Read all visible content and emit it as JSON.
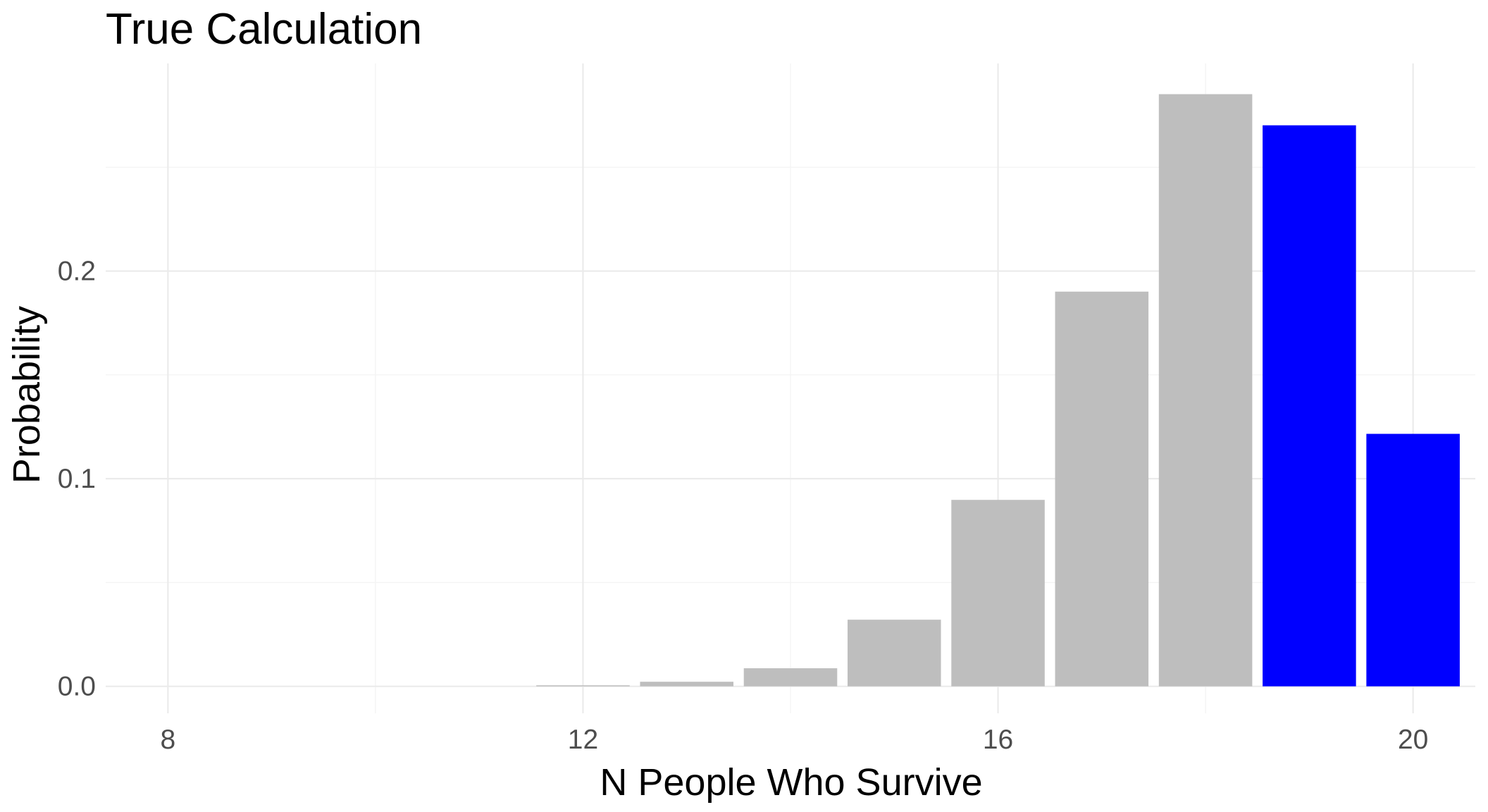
{
  "chart_data": {
    "type": "bar",
    "title": "True Calculation",
    "xlabel": "N People Who Survive",
    "ylabel": "Probability",
    "x": [
      12,
      13,
      14,
      15,
      16,
      17,
      18,
      19,
      20
    ],
    "values": [
      0.0005,
      0.0022,
      0.0087,
      0.0321,
      0.0898,
      0.1901,
      0.2852,
      0.2702,
      0.1216
    ],
    "highlight": [
      false,
      false,
      false,
      false,
      false,
      false,
      false,
      true,
      true
    ],
    "colors": {
      "default": "#bebebe",
      "highlight": "#0000ff"
    },
    "xlim": [
      7.4,
      20.6
    ],
    "ylim": [
      -0.013,
      0.3
    ],
    "xticks": [
      8,
      12,
      16,
      20
    ],
    "xtick_labels": [
      "8",
      "12",
      "16",
      "20"
    ],
    "yticks": [
      0.0,
      0.1,
      0.2
    ],
    "ytick_labels": [
      "0.0",
      "0.1",
      "0.2"
    ],
    "grid": true,
    "legend": "none"
  }
}
